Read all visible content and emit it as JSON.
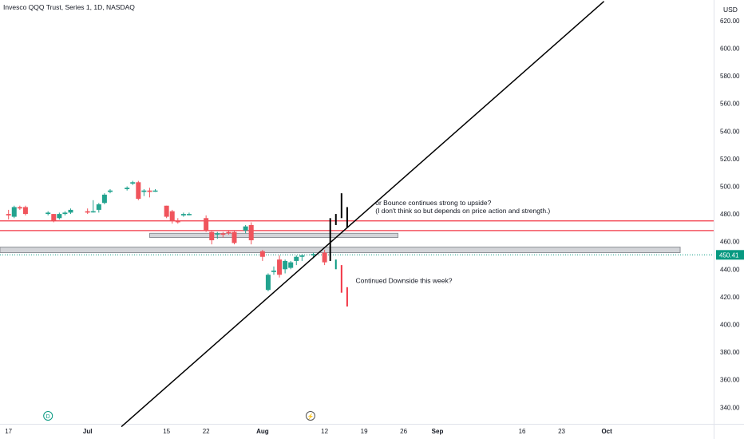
{
  "header": {
    "title": "Invesco QQQ Trust, Series 1, 1D, NASDAQ",
    "currency": "USD"
  },
  "chart_data": {
    "type": "candlestick",
    "y_ticks": [
      340,
      360,
      380,
      400,
      420,
      440,
      460,
      480,
      500,
      520,
      540,
      560,
      580,
      600,
      620
    ],
    "y_tick_labels": [
      "340.00",
      "360.00",
      "380.00",
      "400.00",
      "420.00",
      "440.00",
      "460.00",
      "480.00",
      "500.00",
      "520.00",
      "540.00",
      "560.00",
      "580.00",
      "600.00",
      "620.00"
    ],
    "x_ticks": [
      {
        "label": "17",
        "day": 0
      },
      {
        "label": "Jul",
        "day": 14
      },
      {
        "label": "15",
        "day": 28
      },
      {
        "label": "22",
        "day": 35
      },
      {
        "label": "Aug",
        "day": 45
      },
      {
        "label": "12",
        "day": 56
      },
      {
        "label": "19",
        "day": 63
      },
      {
        "label": "26",
        "day": 70
      },
      {
        "label": "Sep",
        "day": 76
      },
      {
        "label": "16",
        "day": 91
      },
      {
        "label": "23",
        "day": 98
      },
      {
        "label": "Oct",
        "day": 106
      }
    ],
    "last_price": "450.41",
    "candles": [
      {
        "day": 0,
        "o": 480,
        "h": 483,
        "l": 476,
        "c": 479
      },
      {
        "day": 1,
        "o": 478,
        "h": 486,
        "l": 477,
        "c": 485
      },
      {
        "day": 2,
        "o": 485,
        "h": 486,
        "l": 483,
        "c": 484
      },
      {
        "day": 3,
        "o": 485,
        "h": 486,
        "l": 479,
        "c": 480
      },
      {
        "day": 7,
        "o": 480,
        "h": 482,
        "l": 479,
        "c": 481
      },
      {
        "day": 8,
        "o": 480,
        "h": 480,
        "l": 474,
        "c": 475
      },
      {
        "day": 9,
        "o": 477,
        "h": 481,
        "l": 476,
        "c": 480
      },
      {
        "day": 10,
        "o": 480,
        "h": 482,
        "l": 479,
        "c": 481
      },
      {
        "day": 11,
        "o": 481,
        "h": 484,
        "l": 480,
        "c": 483
      },
      {
        "day": 14,
        "o": 482,
        "h": 484,
        "l": 480,
        "c": 481
      },
      {
        "day": 15,
        "o": 482,
        "h": 490,
        "l": 481,
        "c": 482
      },
      {
        "day": 16,
        "o": 483,
        "h": 488,
        "l": 481,
        "c": 487
      },
      {
        "day": 17,
        "o": 488,
        "h": 495,
        "l": 487,
        "c": 494
      },
      {
        "day": 18,
        "o": 496,
        "h": 498,
        "l": 495,
        "c": 497
      },
      {
        "day": 21,
        "o": 498,
        "h": 500,
        "l": 497,
        "c": 499
      },
      {
        "day": 22,
        "o": 502,
        "h": 504,
        "l": 501,
        "c": 503
      },
      {
        "day": 23,
        "o": 503,
        "h": 504,
        "l": 490,
        "c": 491
      },
      {
        "day": 24,
        "o": 496,
        "h": 498,
        "l": 493,
        "c": 497
      },
      {
        "day": 25,
        "o": 497,
        "h": 499,
        "l": 492,
        "c": 496
      },
      {
        "day": 26,
        "o": 497,
        "h": 498,
        "l": 496,
        "c": 497
      },
      {
        "day": 28,
        "o": 486,
        "h": 486,
        "l": 477,
        "c": 478
      },
      {
        "day": 29,
        "o": 482,
        "h": 483,
        "l": 473,
        "c": 475
      },
      {
        "day": 30,
        "o": 475,
        "h": 477,
        "l": 473,
        "c": 474
      },
      {
        "day": 31,
        "o": 479,
        "h": 481,
        "l": 478,
        "c": 480
      },
      {
        "day": 32,
        "o": 480,
        "h": 481,
        "l": 479,
        "c": 480
      },
      {
        "day": 35,
        "o": 477,
        "h": 479,
        "l": 467,
        "c": 468
      },
      {
        "day": 36,
        "o": 467,
        "h": 468,
        "l": 458,
        "c": 461
      },
      {
        "day": 37,
        "o": 466,
        "h": 467,
        "l": 462,
        "c": 466
      },
      {
        "day": 38,
        "o": 466,
        "h": 467,
        "l": 463,
        "c": 465
      },
      {
        "day": 39,
        "o": 467,
        "h": 468,
        "l": 465,
        "c": 466
      },
      {
        "day": 40,
        "o": 467,
        "h": 468,
        "l": 458,
        "c": 459
      },
      {
        "day": 42,
        "o": 468,
        "h": 472,
        "l": 466,
        "c": 471
      },
      {
        "day": 43,
        "o": 472,
        "h": 474,
        "l": 458,
        "c": 461
      },
      {
        "day": 45,
        "o": 453,
        "h": 454,
        "l": 446,
        "c": 449
      },
      {
        "day": 46,
        "o": 425,
        "h": 437,
        "l": 424,
        "c": 436
      },
      {
        "day": 47,
        "o": 438,
        "h": 442,
        "l": 436,
        "c": 439
      },
      {
        "day": 48,
        "o": 447,
        "h": 450,
        "l": 434,
        "c": 436
      },
      {
        "day": 49,
        "o": 440,
        "h": 447,
        "l": 437,
        "c": 446
      },
      {
        "day": 50,
        "o": 441,
        "h": 446,
        "l": 440,
        "c": 445
      },
      {
        "day": 51,
        "o": 446,
        "h": 450,
        "l": 443,
        "c": 449
      },
      {
        "day": 52,
        "o": 449,
        "h": 451,
        "l": 446,
        "c": 450
      },
      {
        "day": 54,
        "o": 450,
        "h": 452,
        "l": 448,
        "c": 451
      },
      {
        "day": 56,
        "o": 452,
        "h": 454,
        "l": 443,
        "c": 445
      }
    ],
    "projection_sticks": [
      {
        "day": 57,
        "low": 446,
        "high": 477,
        "color": "#000000"
      },
      {
        "day": 58,
        "low": 472,
        "high": 480,
        "color": "#000000"
      },
      {
        "day": 59,
        "low": 477,
        "high": 495,
        "color": "#000000"
      },
      {
        "day": 60,
        "low": 470,
        "high": 485,
        "color": "#000000"
      },
      {
        "day": 58,
        "low": 440,
        "high": 447,
        "color": "#089981"
      },
      {
        "day": 59,
        "low": 423,
        "high": 443,
        "color": "#f23645"
      },
      {
        "day": 60,
        "low": 413,
        "high": 427,
        "color": "#f23645"
      }
    ],
    "horizontal_lines": [
      {
        "price": 475,
        "color": "#f23645"
      },
      {
        "price": 468,
        "color": "#f23645"
      }
    ],
    "zones": [
      {
        "from_day": 25,
        "to_day": 69,
        "low": 463,
        "high": 466
      },
      {
        "from_day": -3,
        "to_day": 119,
        "low": 452,
        "high": 456
      }
    ],
    "trendline": {
      "day1": 20,
      "price1": 326,
      "day2": 105.5,
      "price2": 634,
      "color": "#000000"
    },
    "annotations": [
      {
        "text": "or Bounce continues strong to upside?",
        "day": 65,
        "price": 486.5
      },
      {
        "text": "(I don't think so but depends on price action and strength.)",
        "day": 65,
        "price": 480.5
      },
      {
        "text": "Continued Downside this week?",
        "day": 61.5,
        "price": 430
      }
    ],
    "markers": [
      {
        "text": "D",
        "day": 7,
        "color": "#089981"
      },
      {
        "text": "⚡",
        "day": 53.5,
        "color": "#555555"
      }
    ],
    "colors": {
      "up": "#22a38f",
      "down": "#f0545c",
      "last_price_bg": "#089981",
      "zone_fill": "#d3d4d8",
      "zone_stroke": "#8e9096"
    }
  }
}
